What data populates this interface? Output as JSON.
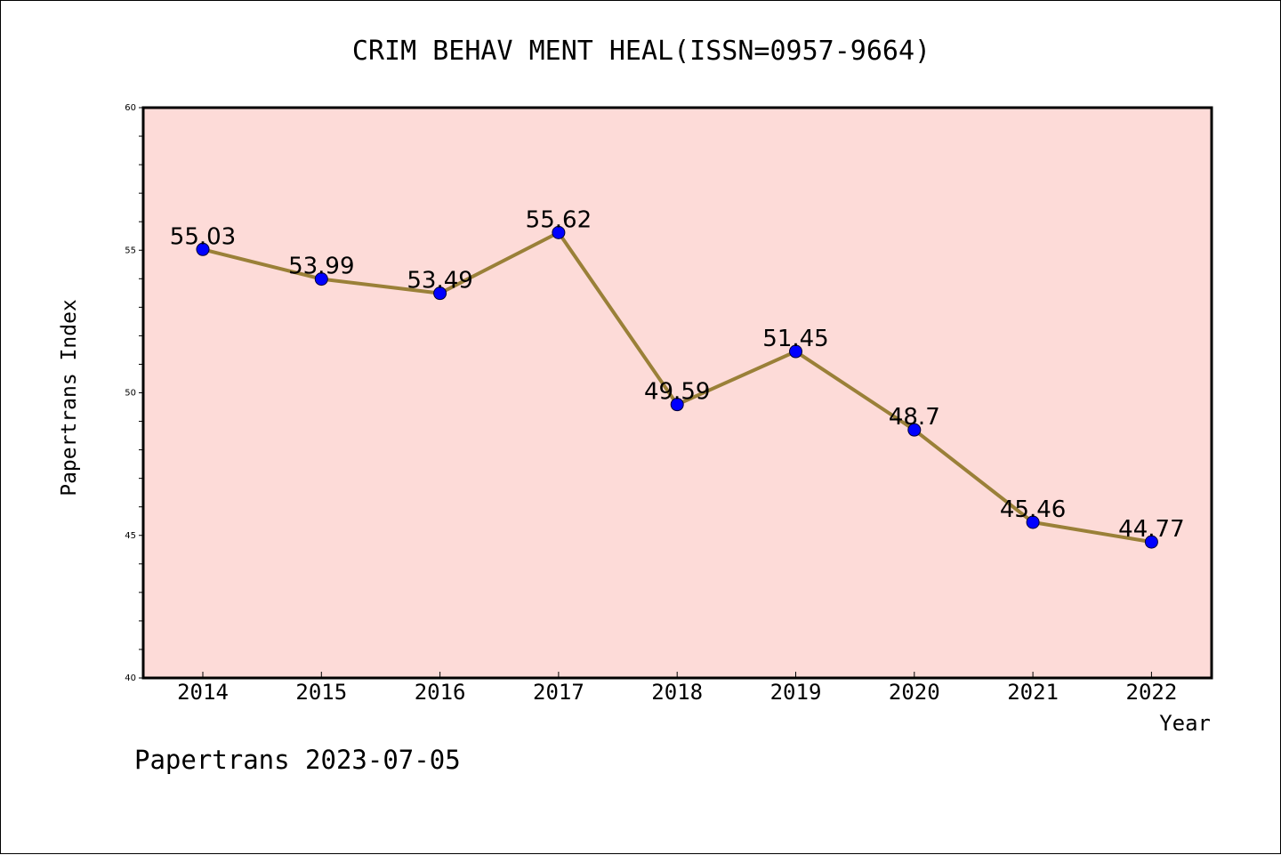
{
  "chart_data": {
    "type": "line",
    "title": "CRIM BEHAV MENT HEAL(ISSN=0957-9664)",
    "xlabel": "Year",
    "ylabel": "Papertrans Index",
    "categories": [
      "2014",
      "2015",
      "2016",
      "2017",
      "2018",
      "2019",
      "2020",
      "2021",
      "2022"
    ],
    "values": [
      55.03,
      53.99,
      53.49,
      55.62,
      49.59,
      51.45,
      48.7,
      45.46,
      44.77
    ],
    "data_labels": [
      "55.03",
      "53.99",
      "53.49",
      "55.62",
      "49.59",
      "51.45",
      "48.7",
      "45.46",
      "44.77"
    ],
    "ylim": [
      40,
      60
    ],
    "yticks": [
      40,
      45,
      50,
      55,
      60
    ],
    "grid": false,
    "legend": "none",
    "colors": {
      "plot_background": "#fddbd8",
      "line": "#9a8038",
      "marker": "#0000ff"
    }
  },
  "footer": "Papertrans 2023-07-05"
}
